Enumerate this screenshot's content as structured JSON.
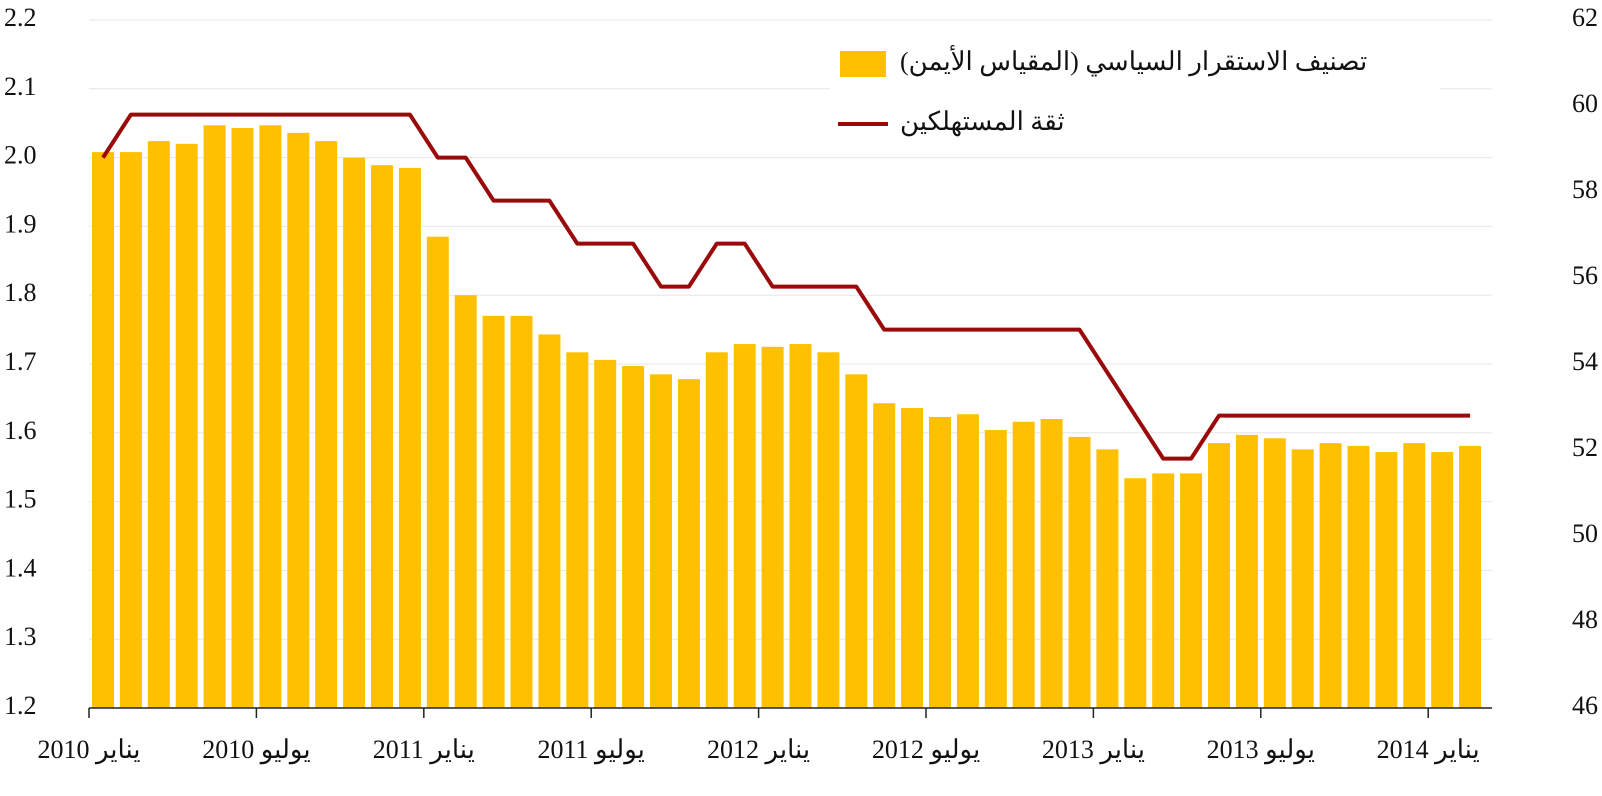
{
  "chart_data": {
    "type": "bar-line",
    "categories": [
      "يناير 2010",
      null,
      null,
      null,
      null,
      null,
      "يوليو 2010",
      null,
      null,
      null,
      null,
      null,
      "يناير 2011",
      null,
      null,
      null,
      null,
      null,
      "يوليو 2011",
      null,
      null,
      null,
      null,
      null,
      "يناير 2012",
      null,
      null,
      null,
      null,
      null,
      "يوليو 2012",
      null,
      null,
      null,
      null,
      null,
      "يناير 2013",
      null,
      null,
      null,
      null,
      null,
      "يوليو 2013",
      null,
      null,
      null,
      null,
      null,
      "يناير 2014",
      null
    ],
    "series": [
      {
        "name": "تصنيف الاستقرار السياسي (المقياس الأيمن)",
        "type": "bar",
        "color": "#ffc000",
        "values": [
          2.008,
          2.008,
          2.024,
          2.02,
          2.047,
          2.043,
          2.047,
          2.036,
          2.024,
          2.0,
          1.989,
          1.985,
          1.885,
          1.8,
          1.77,
          1.77,
          1.743,
          1.717,
          1.706,
          1.697,
          1.685,
          1.678,
          1.717,
          1.729,
          1.725,
          1.729,
          1.717,
          1.685,
          1.643,
          1.636,
          1.623,
          1.627,
          1.604,
          1.616,
          1.62,
          1.594,
          1.576,
          1.534,
          1.541,
          1.541,
          1.585,
          1.597,
          1.592,
          1.576,
          1.585,
          1.581,
          1.572,
          1.585,
          1.572,
          1.581
        ]
      },
      {
        "name": "ثقة المستهلكين",
        "type": "line",
        "color": "#9b0a0a",
        "axis": "y2",
        "values": [
          58.8,
          59.8,
          59.8,
          59.8,
          59.8,
          59.8,
          59.8,
          59.8,
          59.8,
          59.8,
          59.8,
          59.8,
          58.8,
          58.8,
          57.8,
          57.8,
          57.8,
          56.8,
          56.8,
          56.8,
          55.8,
          55.8,
          56.8,
          56.8,
          55.8,
          55.8,
          55.8,
          55.8,
          54.8,
          54.8,
          54.8,
          54.8,
          54.8,
          54.8,
          54.8,
          54.8,
          53.8,
          52.8,
          51.8,
          51.8,
          52.8,
          52.8,
          52.8,
          52.8,
          52.8,
          52.8,
          52.8,
          52.8,
          52.8,
          52.8
        ]
      }
    ],
    "ylim": [
      1.2,
      2.2
    ],
    "yticks": [
      1.2,
      1.3,
      1.4,
      1.5,
      1.6,
      1.7,
      1.8,
      1.9,
      {
        "value": 2,
        "label": "2.0"
      },
      2.1,
      2.2
    ],
    "y2lim": [
      46,
      62
    ],
    "y2ticks": [
      46,
      48,
      50,
      52,
      54,
      56,
      58,
      60,
      62
    ],
    "grid": true,
    "legend": "top-right"
  }
}
